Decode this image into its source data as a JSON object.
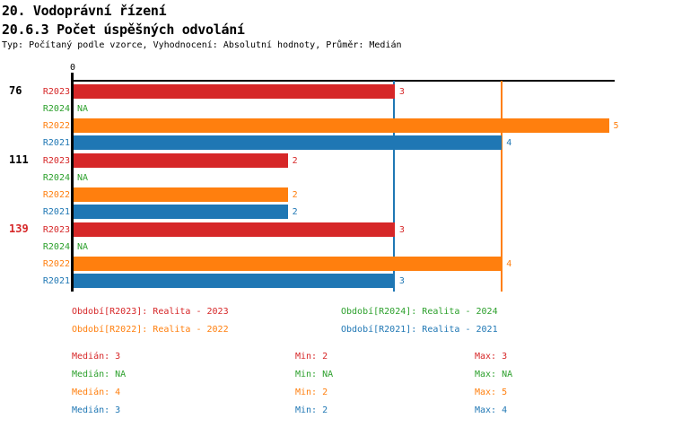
{
  "header": {
    "title": "20. Vodoprávní řízení",
    "subtitle": "20.6.3 Počet úspěšných odvolání",
    "meta": "Typ: Počítaný podle vzorce, Vyhodnocení: Absolutní hodnoty, Průměr: Medián"
  },
  "colors": {
    "R2023": "#d62728",
    "R2024": "#2ca02c",
    "R2022": "#ff7f0e",
    "R2021": "#1f77b4",
    "axis": "#000000"
  },
  "chart_data": {
    "type": "bar",
    "orientation": "horizontal",
    "title": "20.6.3 Počet úspěšných odvolání",
    "x_axis": {
      "tick_label": "0",
      "min": 0,
      "max": 5,
      "grid": false
    },
    "series_order": [
      "R2023",
      "R2024",
      "R2022",
      "R2021"
    ],
    "groups": [
      {
        "label": "76",
        "label_color": "#000000",
        "values": {
          "R2023": 3,
          "R2024": "NA",
          "R2022": 5,
          "R2021": 4
        }
      },
      {
        "label": "111",
        "label_color": "#000000",
        "values": {
          "R2023": 2,
          "R2024": "NA",
          "R2022": 2,
          "R2021": 2
        }
      },
      {
        "label": "139",
        "label_color": "#d62728",
        "values": {
          "R2023": 3,
          "R2024": "NA",
          "R2022": 4,
          "R2021": 3
        }
      }
    ],
    "reference_lines": [
      {
        "name": "median-R2021",
        "value": 3,
        "color": "#1f77b4"
      },
      {
        "name": "median-R2022",
        "value": 4,
        "color": "#ff7f0e"
      }
    ],
    "legend": [
      {
        "text": "Období[R2023]: Realita - 2023",
        "series": "R2023",
        "color": "#d62728",
        "col": 0,
        "row": 0
      },
      {
        "text": "Období[R2024]: Realita - 2024",
        "series": "R2024",
        "color": "#2ca02c",
        "col": 1,
        "row": 0
      },
      {
        "text": "Období[R2022]: Realita - 2022",
        "series": "R2022",
        "color": "#ff7f0e",
        "col": 0,
        "row": 1
      },
      {
        "text": "Období[R2021]: Realita - 2021",
        "series": "R2021",
        "color": "#1f77b4",
        "col": 1,
        "row": 1
      }
    ],
    "stats": [
      {
        "series": "R2023",
        "color": "#d62728",
        "cells": [
          "Medián: 3",
          "Min: 2",
          "Max: 3"
        ]
      },
      {
        "series": "R2024",
        "color": "#2ca02c",
        "cells": [
          "Medián: NA",
          "Min: NA",
          "Max: NA"
        ]
      },
      {
        "series": "R2022",
        "color": "#ff7f0e",
        "cells": [
          "Medián: 4",
          "Min: 2",
          "Max: 5"
        ]
      },
      {
        "series": "R2021",
        "color": "#1f77b4",
        "cells": [
          "Medián: 3",
          "Min: 2",
          "Max: 4"
        ]
      }
    ]
  }
}
